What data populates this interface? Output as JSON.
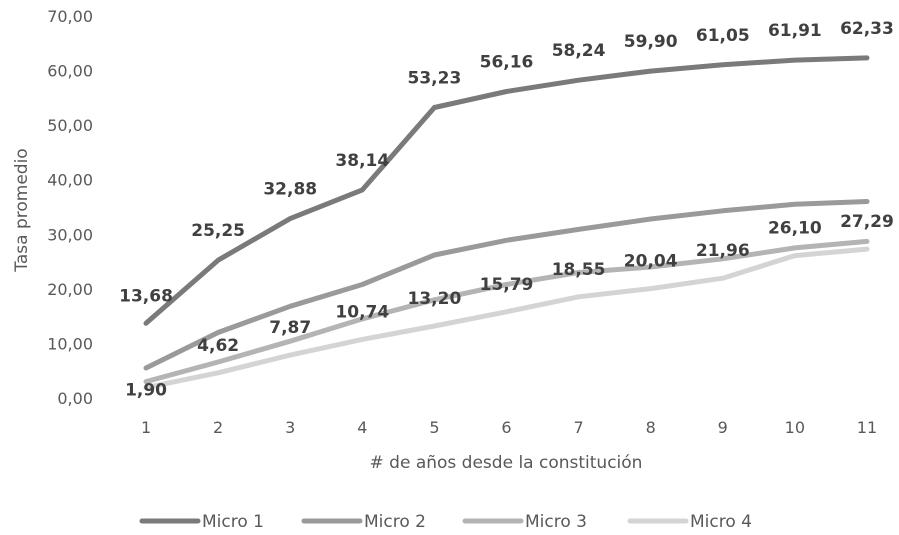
{
  "chart_data": {
    "type": "line",
    "title": "",
    "xlabel": "# de años desde la constitución",
    "ylabel": "Tasa promedio",
    "categories": [
      "1",
      "2",
      "3",
      "4",
      "5",
      "6",
      "7",
      "8",
      "9",
      "10",
      "11"
    ],
    "ylim": [
      0,
      70
    ],
    "yticks": [
      "0,00",
      "10,00",
      "20,00",
      "30,00",
      "40,00",
      "50,00",
      "60,00",
      "70,00"
    ],
    "grid": false,
    "legend_position": "bottom",
    "series": [
      {
        "name": "Micro 1",
        "color": "#7a7a7a",
        "values": [
          13.68,
          25.25,
          32.88,
          38.14,
          53.23,
          56.16,
          58.24,
          59.9,
          61.05,
          61.91,
          62.33
        ],
        "labels": [
          "13,68",
          "25,25",
          "32,88",
          "38,14",
          "53,23",
          "56,16",
          "58,24",
          "59,90",
          "61,05",
          "61,91",
          "62,33"
        ]
      },
      {
        "name": "Micro 2",
        "color": "#9a9a9a",
        "values": [
          5.5,
          12.0,
          16.8,
          20.8,
          26.2,
          28.9,
          30.9,
          32.8,
          34.3,
          35.5,
          36.0
        ],
        "labels": []
      },
      {
        "name": "Micro 3",
        "color": "#b4b4b4",
        "values": [
          3.0,
          6.6,
          10.4,
          14.5,
          18.0,
          20.8,
          23.0,
          24.0,
          25.5,
          27.5,
          28.7
        ],
        "labels": []
      },
      {
        "name": "Micro 4",
        "color": "#d4d4d4",
        "values": [
          1.9,
          4.62,
          7.87,
          10.74,
          13.2,
          15.79,
          18.55,
          20.04,
          21.96,
          26.1,
          27.29
        ],
        "labels": [
          "1,90",
          "4,62",
          "7,87",
          "10,74",
          "13,20",
          "15,79",
          "18,55",
          "20,04",
          "21,96",
          "26,10",
          "27,29"
        ]
      }
    ]
  }
}
